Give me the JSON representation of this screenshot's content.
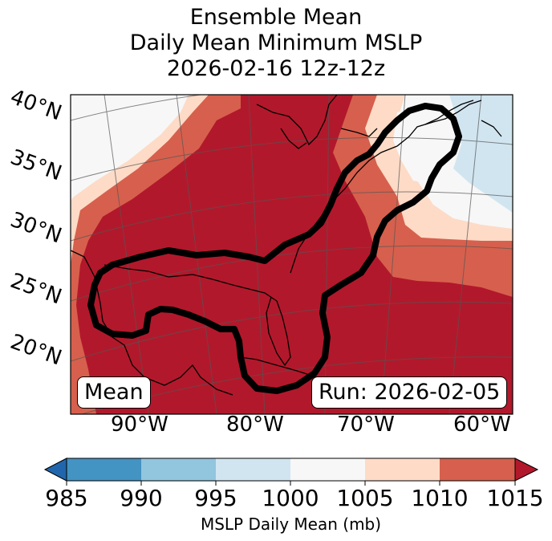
{
  "title": {
    "line1": "Ensemble Mean",
    "line2": "Daily Mean Minimum MSLP",
    "line3": "2026-02-16 12z-12z"
  },
  "map": {
    "lat_labels": [
      "40°N",
      "35°N",
      "30°N",
      "25°N",
      "20°N"
    ],
    "lon_labels": [
      "90°W",
      "80°W",
      "70°W",
      "60°W"
    ],
    "mean_label": "Mean",
    "run_label": "Run: 2026-02-05"
  },
  "colorbar": {
    "ticks": [
      "985",
      "990",
      "995",
      "1000",
      "1005",
      "1010",
      "1015"
    ],
    "label": "MSLP Daily Mean (mb)",
    "colors": [
      "#2166ac",
      "#4393c3",
      "#92c5de",
      "#d1e5f0",
      "#f7f7f7",
      "#fddbc7",
      "#d6604d",
      "#b2182b"
    ]
  }
}
